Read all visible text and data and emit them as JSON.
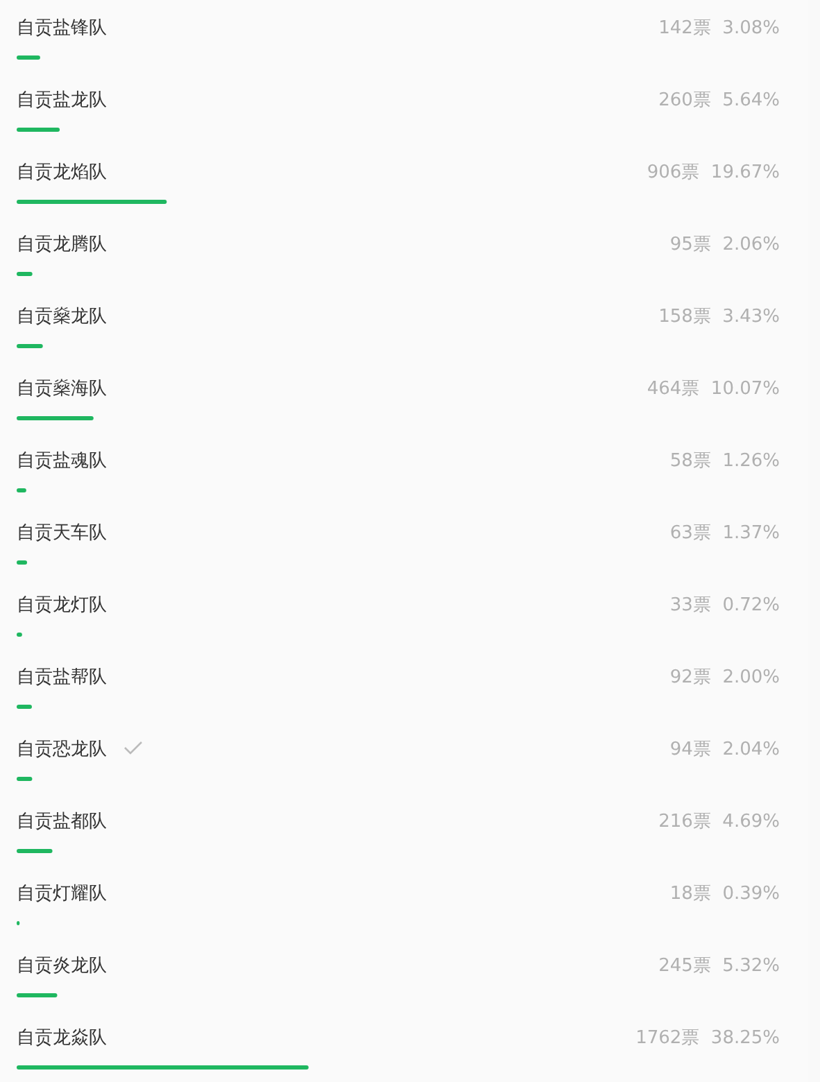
{
  "chart_data": {
    "type": "bar",
    "orientation": "horizontal",
    "color": "#1fb760",
    "categories": [
      "自贡盐锋队",
      "自贡盐龙队",
      "自贡龙焰队",
      "自贡龙腾队",
      "自贡燊龙队",
      "自贡燊海队",
      "自贡盐魂队",
      "自贡天车队",
      "自贡龙灯队",
      "自贡盐帮队",
      "自贡恐龙队",
      "自贡盐都队",
      "自贡灯耀队",
      "自贡炎龙队",
      "自贡龙焱队"
    ],
    "values": [
      142,
      260,
      906,
      95,
      158,
      464,
      58,
      63,
      33,
      92,
      94,
      216,
      18,
      245,
      1762
    ],
    "value_labels": [
      "142票  3.08%",
      "260票  5.64%",
      "906票  19.67%",
      "95票  2.06%",
      "158票  3.43%",
      "464票  10.07%",
      "58票  1.26%",
      "63票  1.37%",
      "33票  0.72%",
      "92票  2.00%",
      "94票  2.04%",
      "216票  4.69%",
      "18票  0.39%",
      "245票  5.32%",
      "1762票  38.25%"
    ]
  }
}
